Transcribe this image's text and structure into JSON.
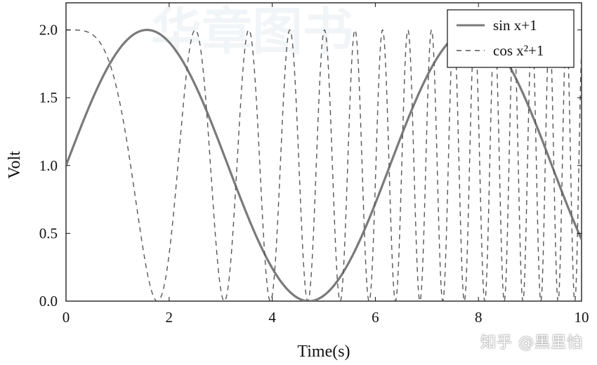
{
  "chart_data": {
    "type": "line",
    "xlabel": "Time(s)",
    "ylabel": "Volt",
    "xlim": [
      0,
      10
    ],
    "ylim": [
      0,
      2.2
    ],
    "xticks": [
      0,
      2,
      4,
      6,
      8,
      10
    ],
    "yticks": [
      0.0,
      0.5,
      1.0,
      1.5,
      2.0
    ],
    "grid": false,
    "legend_placement": "top-right",
    "series": [
      {
        "name": "sin x+1",
        "function": "sin(x)+1",
        "style": "solid",
        "color": "#7a7a7a"
      },
      {
        "name": "cos x²+1",
        "function": "cos(x^2)+1",
        "style": "dashed",
        "color": "#555555"
      }
    ]
  },
  "watermark": {
    "text": "知乎 @黑里怕",
    "background_text": "华章图书"
  }
}
